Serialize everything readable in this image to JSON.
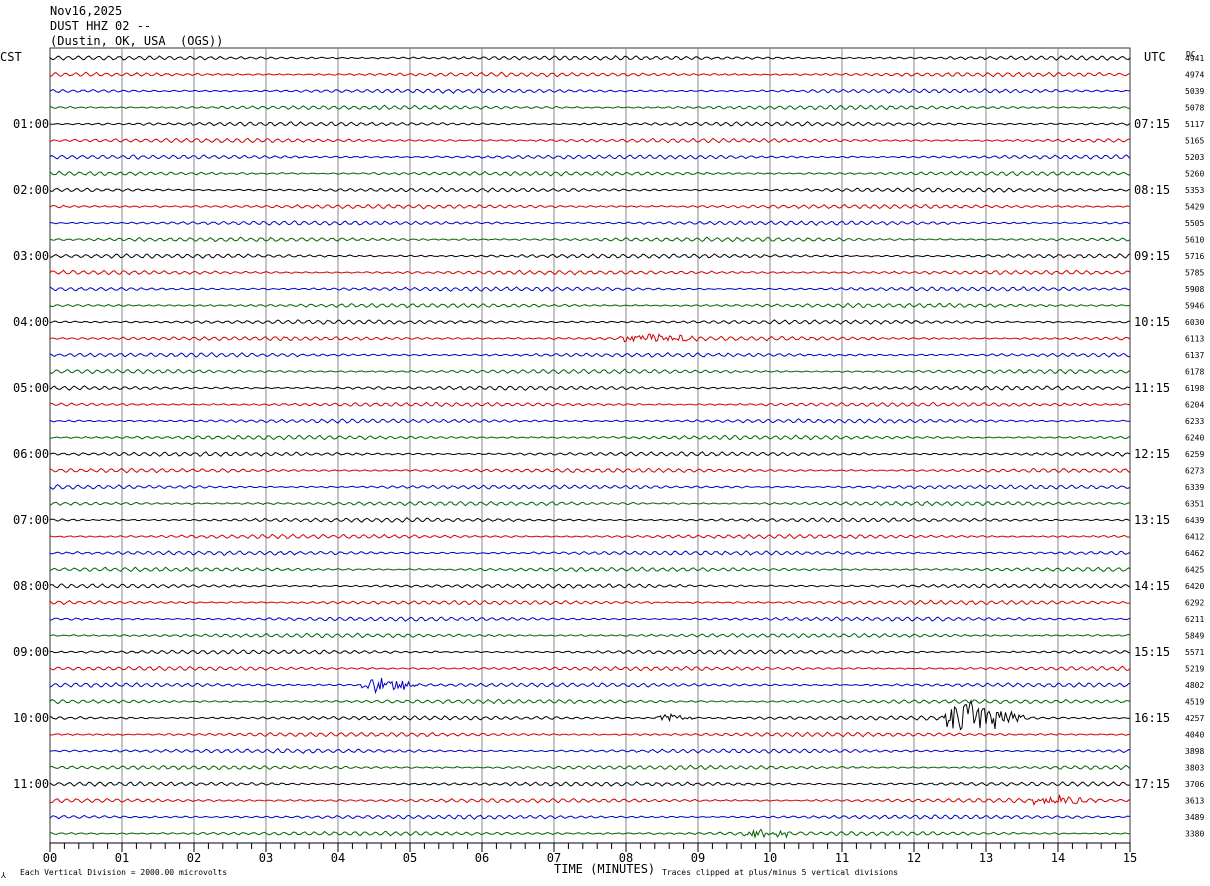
{
  "header": {
    "date": "Nov16,2025",
    "station": "DUST HHZ 02 --",
    "location": "(Dustin, OK, USA  (OGS))"
  },
  "left_label": "CST",
  "right_label": "UTC",
  "dc_label": "DC",
  "footer": {
    "scale_note": "Each Vertical Division = 2000.00 microvolts",
    "xlabel": "TIME (MINUTES)",
    "clip_note": "Traces clipped at plus/minus 5 vertical divisions"
  },
  "chart_data": {
    "type": "line",
    "title": "Nov16,2025",
    "xlabel": "TIME (MINUTES)",
    "ylabel": "",
    "xlim": [
      0,
      15
    ],
    "x_ticks": [
      "00",
      "01",
      "02",
      "03",
      "04",
      "05",
      "06",
      "07",
      "08",
      "09",
      "10",
      "11",
      "12",
      "13",
      "14",
      "15"
    ],
    "left_hour_labels": [
      "01:00",
      "02:00",
      "03:00",
      "04:00",
      "05:00",
      "06:00",
      "07:00",
      "08:00",
      "09:00",
      "10:00",
      "11:00"
    ],
    "right_hour_labels": [
      "07:15",
      "08:15",
      "09:15",
      "10:15",
      "11:15",
      "12:15",
      "13:15",
      "14:15",
      "15:15",
      "16:15",
      "17:15"
    ],
    "hour_label_rows": [
      4,
      8,
      12,
      16,
      20,
      24,
      28,
      32,
      36,
      40,
      44
    ],
    "trace_colors": [
      "#000000",
      "#d00000",
      "#0000c8",
      "#006400"
    ],
    "dc_offsets": [
      4941,
      4974,
      5039,
      5078,
      5117,
      5165,
      5203,
      5260,
      5353,
      5429,
      5505,
      5610,
      5716,
      5785,
      5908,
      5946,
      6030,
      6113,
      6137,
      6178,
      6198,
      6204,
      6233,
      6240,
      6259,
      6273,
      6339,
      6351,
      6439,
      6412,
      6462,
      6425,
      6420,
      6292,
      6211,
      5849,
      5571,
      5219,
      4802,
      4519,
      4257,
      4040,
      3898,
      3803,
      3706,
      3613,
      3489,
      3380
    ],
    "events": [
      {
        "row": 17,
        "start_min": 7.9,
        "end_min": 9.2,
        "amplitude": "small"
      },
      {
        "row": 38,
        "start_min": 4.3,
        "end_min": 5.2,
        "amplitude": "medium"
      },
      {
        "row": 40,
        "start_min": 8.4,
        "end_min": 9.0,
        "amplitude": "small"
      },
      {
        "row": 40,
        "start_min": 12.4,
        "end_min": 13.6,
        "amplitude": "large"
      },
      {
        "row": 45,
        "start_min": 13.6,
        "end_min": 14.6,
        "amplitude": "small"
      },
      {
        "row": 47,
        "start_min": 9.6,
        "end_min": 10.5,
        "amplitude": "small"
      }
    ]
  }
}
